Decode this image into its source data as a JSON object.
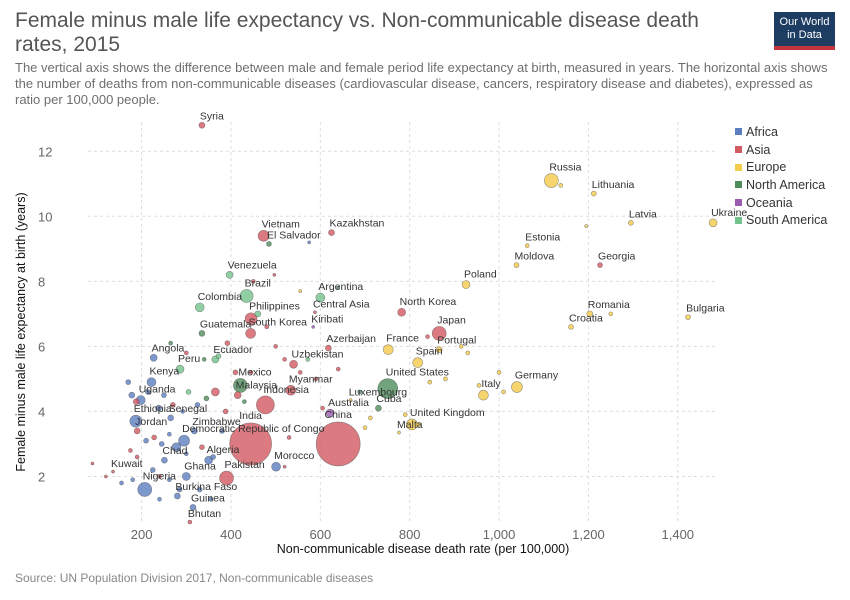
{
  "header": {
    "title": "Female minus male life expectancy vs. Non-communicable disease death rates, 2015",
    "subtitle": "The vertical axis shows the difference between male and female period life expectancy at birth, measured in years. The horizontal axis shows the number of deaths from non-communicable diseases (cardiovascular disease, cancers, respiratory disease and diabetes), expressed as ratio per 100,000 people.",
    "logo_line1": "Our World",
    "logo_line2": "in Data",
    "logo_colors": {
      "background": "#1d3d63",
      "bar": "#c3343c"
    }
  },
  "footer": {
    "source": "Source: UN Population Division 2017, Non-communicable diseases"
  },
  "chart_data": {
    "type": "scatter",
    "xlabel": "Non-communicable disease death rate (per 100,000)",
    "ylabel": "Female minus male life expectancy at birth (years)",
    "xlim": [
      80,
      1490
    ],
    "ylim": [
      0.6,
      12.9
    ],
    "x_ticks": [
      200,
      400,
      600,
      800,
      1000,
      1200,
      1400
    ],
    "x_tick_labels": [
      "200",
      "400",
      "600",
      "800",
      "1,000",
      "1,200",
      "1,400"
    ],
    "y_ticks": [
      2,
      4,
      6,
      8,
      10,
      12
    ],
    "y_tick_labels": [
      "2",
      "4",
      "6",
      "8",
      "10",
      "12"
    ],
    "grid": true,
    "legend_position": "right",
    "series": [
      {
        "name": "Africa",
        "color": "#5b7ec1"
      },
      {
        "name": "Asia",
        "color": "#d25a62"
      },
      {
        "name": "Europe",
        "color": "#f4cb4b"
      },
      {
        "name": "North America",
        "color": "#4e8c5b"
      },
      {
        "name": "Oceania",
        "color": "#9c5bb3"
      },
      {
        "name": "South America",
        "color": "#74c38c"
      }
    ],
    "labeled_points": [
      {
        "label": "Syria",
        "x": 335,
        "y": 12.8,
        "series": "Asia",
        "size": 3
      },
      {
        "label": "Russia",
        "x": 1117,
        "y": 11.1,
        "series": "Europe",
        "size": 7
      },
      {
        "label": "Lithuania",
        "x": 1212,
        "y": 10.7,
        "series": "Europe",
        "size": 2.5
      },
      {
        "label": "Latvia",
        "x": 1295,
        "y": 9.8,
        "series": "Europe",
        "size": 2.5
      },
      {
        "label": "Ukraine",
        "x": 1479,
        "y": 9.8,
        "series": "Europe",
        "size": 4
      },
      {
        "label": "Kazakhstan",
        "x": 625,
        "y": 9.5,
        "series": "Asia",
        "size": 3
      },
      {
        "label": "Vietnam",
        "x": 473,
        "y": 9.4,
        "series": "Asia",
        "size": 5.5
      },
      {
        "label": "El Salvador",
        "x": 485,
        "y": 9.15,
        "series": "North America",
        "size": 2.5
      },
      {
        "label": "Estonia",
        "x": 1063,
        "y": 9.1,
        "series": "Europe",
        "size": 2
      },
      {
        "label": "Moldova",
        "x": 1039,
        "y": 8.5,
        "series": "Europe",
        "size": 2.5
      },
      {
        "label": "Georgia",
        "x": 1226,
        "y": 8.5,
        "series": "Asia",
        "size": 2.5
      },
      {
        "label": "Venezuela",
        "x": 397,
        "y": 8.2,
        "series": "South America",
        "size": 3.5
      },
      {
        "label": "Poland",
        "x": 926,
        "y": 7.9,
        "series": "Europe",
        "size": 4
      },
      {
        "label": "Brazil",
        "x": 435,
        "y": 7.55,
        "series": "South America",
        "size": 6.5
      },
      {
        "label": "Argentina",
        "x": 600,
        "y": 7.5,
        "series": "South America",
        "size": 4.5
      },
      {
        "label": "Colombia",
        "x": 330,
        "y": 7.2,
        "series": "South America",
        "size": 4.5
      },
      {
        "label": "Philippines",
        "x": 445,
        "y": 6.85,
        "series": "Asia",
        "size": 6
      },
      {
        "label": "Central Asia",
        "x": 588,
        "y": 7.05,
        "series": "Asia",
        "size": 1.5
      },
      {
        "label": "North Korea",
        "x": 782,
        "y": 7.05,
        "series": "Asia",
        "size": 4
      },
      {
        "label": "Romania",
        "x": 1203,
        "y": 7.0,
        "series": "Europe",
        "size": 3
      },
      {
        "label": "Bulgaria",
        "x": 1423,
        "y": 6.9,
        "series": "Europe",
        "size": 2.5
      },
      {
        "label": "Kiribati",
        "x": 584,
        "y": 6.6,
        "series": "Oceania",
        "size": 1.5
      },
      {
        "label": "Croatia",
        "x": 1161,
        "y": 6.6,
        "series": "Europe",
        "size": 2.5
      },
      {
        "label": "Guatemala",
        "x": 335,
        "y": 6.4,
        "series": "North America",
        "size": 3
      },
      {
        "label": "South Korea",
        "x": 444,
        "y": 6.4,
        "series": "Asia",
        "size": 5
      },
      {
        "label": "Japan",
        "x": 866,
        "y": 6.4,
        "series": "Asia",
        "size": 7
      },
      {
        "label": "Azerbaijan",
        "x": 618,
        "y": 5.95,
        "series": "Asia",
        "size": 3
      },
      {
        "label": "France",
        "x": 752,
        "y": 5.9,
        "series": "Europe",
        "size": 5
      },
      {
        "label": "Portugal",
        "x": 866,
        "y": 5.9,
        "series": "Europe",
        "size": 3
      },
      {
        "label": "Angola",
        "x": 227,
        "y": 5.65,
        "series": "Africa",
        "size": 3.5
      },
      {
        "label": "Ecuador",
        "x": 365,
        "y": 5.6,
        "series": "South America",
        "size": 3.5
      },
      {
        "label": "Uzbekistan",
        "x": 540,
        "y": 5.45,
        "series": "Asia",
        "size": 4
      },
      {
        "label": "Spain",
        "x": 818,
        "y": 5.5,
        "series": "Europe",
        "size": 5
      },
      {
        "label": "Peru",
        "x": 286,
        "y": 5.3,
        "series": "South America",
        "size": 4
      },
      {
        "label": "Mexico",
        "x": 421,
        "y": 4.8,
        "series": "North America",
        "size": 7
      },
      {
        "label": "Myanmar",
        "x": 534,
        "y": 4.65,
        "series": "Asia",
        "size": 5
      },
      {
        "label": "United States",
        "x": 751,
        "y": 4.7,
        "series": "North America",
        "size": 10
      },
      {
        "label": "Germany",
        "x": 1040,
        "y": 4.75,
        "series": "Europe",
        "size": 5.5
      },
      {
        "label": "Kenya",
        "x": 222,
        "y": 4.9,
        "series": "Africa",
        "size": 4.5
      },
      {
        "label": "Uganda",
        "x": 198,
        "y": 4.35,
        "series": "Africa",
        "size": 4.5
      },
      {
        "label": "Malaysia",
        "x": 415,
        "y": 4.5,
        "series": "Asia",
        "size": 3.5
      },
      {
        "label": "Indonesia",
        "x": 477,
        "y": 4.2,
        "series": "Asia",
        "size": 9
      },
      {
        "label": "Luxembourg",
        "x": 668,
        "y": 4.35,
        "series": "Europe",
        "size": 1.5
      },
      {
        "label": "Italy",
        "x": 965,
        "y": 4.5,
        "series": "Europe",
        "size": 5
      },
      {
        "label": "Cuba",
        "x": 730,
        "y": 4.1,
        "series": "North America",
        "size": 3
      },
      {
        "label": "Australia",
        "x": 622,
        "y": 3.95,
        "series": "Oceania",
        "size": 4
      },
      {
        "label": "Ethiopia",
        "x": 187,
        "y": 3.7,
        "series": "Africa",
        "size": 6
      },
      {
        "label": "Senegal",
        "x": 265,
        "y": 3.8,
        "series": "Africa",
        "size": 3
      },
      {
        "label": "United Kingdom",
        "x": 805,
        "y": 3.6,
        "series": "Europe",
        "size": 5.5
      },
      {
        "label": "Jordan",
        "x": 190,
        "y": 3.4,
        "series": "Asia",
        "size": 3
      },
      {
        "label": "Zimbabwe",
        "x": 318,
        "y": 3.4,
        "series": "Africa",
        "size": 3
      },
      {
        "label": "Malta",
        "x": 776,
        "y": 3.35,
        "series": "Europe",
        "size": 1.5
      },
      {
        "label": "India",
        "x": 444,
        "y": 3.0,
        "series": "Asia",
        "size": 21
      },
      {
        "label": "China",
        "x": 640,
        "y": 3.0,
        "series": "Asia",
        "size": 22
      },
      {
        "label": "Democratic Republic of Congo",
        "x": 295,
        "y": 3.1,
        "series": "Africa",
        "size": 5.5
      },
      {
        "label": "Chad",
        "x": 251,
        "y": 2.5,
        "series": "Africa",
        "size": 3
      },
      {
        "label": "Algeria",
        "x": 350,
        "y": 2.5,
        "series": "Africa",
        "size": 4
      },
      {
        "label": "Morocco",
        "x": 501,
        "y": 2.3,
        "series": "Africa",
        "size": 4.5
      },
      {
        "label": "Kuwait",
        "x": 136,
        "y": 2.15,
        "series": "Asia",
        "size": 1.5
      },
      {
        "label": "Ghana",
        "x": 300,
        "y": 2.0,
        "series": "Africa",
        "size": 4
      },
      {
        "label": "Pakistan",
        "x": 390,
        "y": 1.95,
        "series": "Asia",
        "size": 7
      },
      {
        "label": "Nigeria",
        "x": 207,
        "y": 1.6,
        "series": "Africa",
        "size": 7
      },
      {
        "label": "Burkina Faso",
        "x": 280,
        "y": 1.4,
        "series": "Africa",
        "size": 3
      },
      {
        "label": "Guinea",
        "x": 315,
        "y": 1.05,
        "series": "Africa",
        "size": 3
      },
      {
        "label": "Bhutan",
        "x": 308,
        "y": 0.6,
        "series": "Asia",
        "size": 2
      }
    ],
    "unlabeled_points": [
      {
        "x": 170,
        "y": 4.9,
        "series": "Africa",
        "size": 2.5
      },
      {
        "x": 178,
        "y": 4.5,
        "series": "Africa",
        "size": 3
      },
      {
        "x": 188,
        "y": 4.3,
        "series": "Asia",
        "size": 3
      },
      {
        "x": 214,
        "y": 4.6,
        "series": "Africa",
        "size": 2.5
      },
      {
        "x": 238,
        "y": 4.1,
        "series": "Africa",
        "size": 3
      },
      {
        "x": 250,
        "y": 4.5,
        "series": "Africa",
        "size": 2.5
      },
      {
        "x": 270,
        "y": 4.2,
        "series": "Asia",
        "size": 2.5
      },
      {
        "x": 292,
        "y": 4.0,
        "series": "Africa",
        "size": 2
      },
      {
        "x": 305,
        "y": 4.6,
        "series": "South America",
        "size": 2.5
      },
      {
        "x": 325,
        "y": 4.2,
        "series": "Africa",
        "size": 2.5
      },
      {
        "x": 345,
        "y": 4.4,
        "series": "North America",
        "size": 2.5
      },
      {
        "x": 365,
        "y": 4.6,
        "series": "Asia",
        "size": 4
      },
      {
        "x": 388,
        "y": 4.0,
        "series": "Asia",
        "size": 2.5
      },
      {
        "x": 430,
        "y": 4.3,
        "series": "North America",
        "size": 2
      },
      {
        "x": 210,
        "y": 3.1,
        "series": "Africa",
        "size": 2.5
      },
      {
        "x": 228,
        "y": 3.2,
        "series": "Asia",
        "size": 2.5
      },
      {
        "x": 245,
        "y": 3.0,
        "series": "Africa",
        "size": 2.5
      },
      {
        "x": 262,
        "y": 3.3,
        "series": "Africa",
        "size": 2
      },
      {
        "x": 278,
        "y": 2.9,
        "series": "Africa",
        "size": 4.5
      },
      {
        "x": 300,
        "y": 2.7,
        "series": "Africa",
        "size": 2
      },
      {
        "x": 335,
        "y": 2.9,
        "series": "Asia",
        "size": 2.5
      },
      {
        "x": 360,
        "y": 2.6,
        "series": "Africa",
        "size": 2.5
      },
      {
        "x": 380,
        "y": 3.4,
        "series": "Africa",
        "size": 2.5
      },
      {
        "x": 175,
        "y": 2.8,
        "series": "Asia",
        "size": 2
      },
      {
        "x": 190,
        "y": 2.6,
        "series": "Asia",
        "size": 2
      },
      {
        "x": 225,
        "y": 2.2,
        "series": "Africa",
        "size": 2.5
      },
      {
        "x": 240,
        "y": 2.0,
        "series": "Asia",
        "size": 2
      },
      {
        "x": 262,
        "y": 1.9,
        "series": "Africa",
        "size": 2
      },
      {
        "x": 285,
        "y": 1.6,
        "series": "Africa",
        "size": 2.5
      },
      {
        "x": 330,
        "y": 1.6,
        "series": "Africa",
        "size": 2.5
      },
      {
        "x": 355,
        "y": 1.3,
        "series": "Africa",
        "size": 2
      },
      {
        "x": 180,
        "y": 1.9,
        "series": "Africa",
        "size": 2
      },
      {
        "x": 155,
        "y": 1.8,
        "series": "Africa",
        "size": 2
      },
      {
        "x": 90,
        "y": 2.4,
        "series": "Asia",
        "size": 1.5
      },
      {
        "x": 120,
        "y": 2.0,
        "series": "Asia",
        "size": 1.5
      },
      {
        "x": 240,
        "y": 1.3,
        "series": "Africa",
        "size": 2
      },
      {
        "x": 265,
        "y": 6.1,
        "series": "North America",
        "size": 2
      },
      {
        "x": 300,
        "y": 5.8,
        "series": "Asia",
        "size": 2
      },
      {
        "x": 340,
        "y": 5.6,
        "series": "North America",
        "size": 2
      },
      {
        "x": 372,
        "y": 5.7,
        "series": "South America",
        "size": 2.5
      },
      {
        "x": 392,
        "y": 6.1,
        "series": "Asia",
        "size": 2.5
      },
      {
        "x": 460,
        "y": 7.0,
        "series": "South America",
        "size": 3
      },
      {
        "x": 480,
        "y": 6.6,
        "series": "Asia",
        "size": 2
      },
      {
        "x": 500,
        "y": 6.0,
        "series": "Asia",
        "size": 2
      },
      {
        "x": 520,
        "y": 5.6,
        "series": "Asia",
        "size": 2
      },
      {
        "x": 555,
        "y": 5.2,
        "series": "Asia",
        "size": 2
      },
      {
        "x": 572,
        "y": 5.6,
        "series": "South America",
        "size": 2
      },
      {
        "x": 590,
        "y": 5.0,
        "series": "Asia",
        "size": 2
      },
      {
        "x": 640,
        "y": 5.3,
        "series": "Asia",
        "size": 2
      },
      {
        "x": 605,
        "y": 4.1,
        "series": "Asia",
        "size": 2
      },
      {
        "x": 688,
        "y": 4.6,
        "series": "North America",
        "size": 2
      },
      {
        "x": 712,
        "y": 3.8,
        "series": "Europe",
        "size": 2
      },
      {
        "x": 845,
        "y": 4.9,
        "series": "Europe",
        "size": 2
      },
      {
        "x": 880,
        "y": 5.0,
        "series": "Europe",
        "size": 2
      },
      {
        "x": 955,
        "y": 4.8,
        "series": "Europe",
        "size": 2
      },
      {
        "x": 1000,
        "y": 5.2,
        "series": "Europe",
        "size": 2
      },
      {
        "x": 1010,
        "y": 4.6,
        "series": "Europe",
        "size": 2
      },
      {
        "x": 1138,
        "y": 10.95,
        "series": "Europe",
        "size": 2
      },
      {
        "x": 1195,
        "y": 9.7,
        "series": "Europe",
        "size": 1.5
      },
      {
        "x": 1250,
        "y": 7.0,
        "series": "Europe",
        "size": 2
      },
      {
        "x": 555,
        "y": 7.7,
        "series": "Europe",
        "size": 1.5
      },
      {
        "x": 640,
        "y": 7.8,
        "series": "North America",
        "size": 1.5
      },
      {
        "x": 575,
        "y": 9.2,
        "series": "Africa",
        "size": 1.5
      },
      {
        "x": 450,
        "y": 8.0,
        "series": "Asia",
        "size": 2
      },
      {
        "x": 497,
        "y": 8.2,
        "series": "Asia",
        "size": 1.5
      },
      {
        "x": 410,
        "y": 5.2,
        "series": "Asia",
        "size": 2.5
      },
      {
        "x": 445,
        "y": 5.2,
        "series": "Asia",
        "size": 2
      },
      {
        "x": 915,
        "y": 6.0,
        "series": "Europe",
        "size": 2
      },
      {
        "x": 930,
        "y": 5.8,
        "series": "Europe",
        "size": 2
      },
      {
        "x": 840,
        "y": 6.3,
        "series": "Asia",
        "size": 2
      },
      {
        "x": 790,
        "y": 3.9,
        "series": "Europe",
        "size": 2
      },
      {
        "x": 820,
        "y": 3.6,
        "series": "Europe",
        "size": 2
      },
      {
        "x": 700,
        "y": 3.5,
        "series": "Europe",
        "size": 2
      },
      {
        "x": 530,
        "y": 3.2,
        "series": "Asia",
        "size": 2
      },
      {
        "x": 520,
        "y": 2.3,
        "series": "Asia",
        "size": 1.5
      }
    ]
  }
}
